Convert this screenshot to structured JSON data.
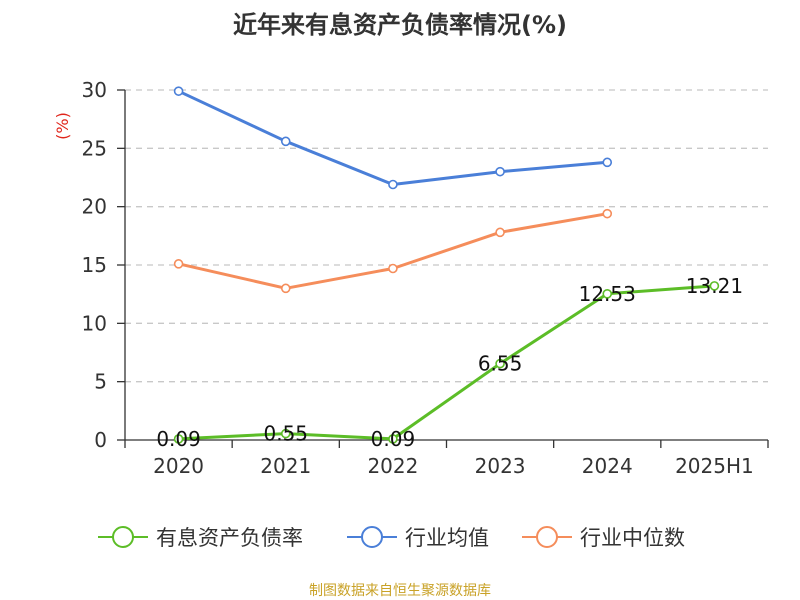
{
  "chart_data": {
    "type": "line",
    "title": "近年来有息资产负债率情况(%)",
    "ylabel": "(%)",
    "categories": [
      "2020",
      "2021",
      "2022",
      "2023",
      "2024",
      "2025H1"
    ],
    "ylim": [
      0,
      30
    ],
    "yticks": [
      "0",
      "5",
      "10",
      "15",
      "20",
      "25",
      "30"
    ],
    "grid": true,
    "legend_position": "bottom",
    "series": [
      {
        "name": "有息资产负债率",
        "color": "#5cbd27",
        "values": [
          0.09,
          0.55,
          0.09,
          6.55,
          12.53,
          13.21
        ],
        "labels": [
          "0.09",
          "0.55",
          "0.09",
          "6.55",
          "12.53",
          "13.21"
        ]
      },
      {
        "name": "行业均值",
        "color": "#4a7fd8",
        "values": [
          29.9,
          25.6,
          21.9,
          23.0,
          23.8,
          null
        ]
      },
      {
        "name": "行业中位数",
        "color": "#f58d5b",
        "values": [
          15.1,
          13.0,
          14.7,
          17.8,
          19.4,
          null
        ]
      }
    ],
    "source": "制图数据来自恒生聚源数据库"
  }
}
